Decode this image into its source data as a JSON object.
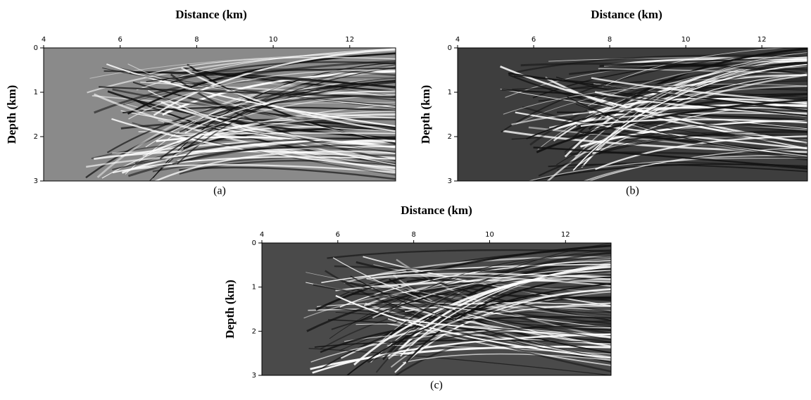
{
  "panels": [
    {
      "x_label": "Distance (km)",
      "y_label": "Depth (km)",
      "xticks": [
        4,
        6,
        8,
        10,
        12
      ],
      "yticks": [
        0,
        1,
        2,
        3
      ],
      "xlim": [
        4,
        13.2
      ],
      "ylim": [
        0,
        3
      ],
      "caption": "(a)"
    },
    {
      "x_label": "Distance (km)",
      "y_label": "Depth (km)",
      "xticks": [
        4,
        6,
        8,
        10,
        12
      ],
      "yticks": [
        0,
        1,
        2,
        3
      ],
      "xlim": [
        4,
        13.2
      ],
      "ylim": [
        0,
        3
      ],
      "caption": "(b)"
    },
    {
      "x_label": "Distance (km)",
      "y_label": "Depth (km)",
      "xticks": [
        4,
        6,
        8,
        10,
        12
      ],
      "yticks": [
        0,
        1,
        2,
        3
      ],
      "xlim": [
        4,
        13.2
      ],
      "ylim": [
        0,
        3
      ],
      "caption": "(c)"
    }
  ]
}
